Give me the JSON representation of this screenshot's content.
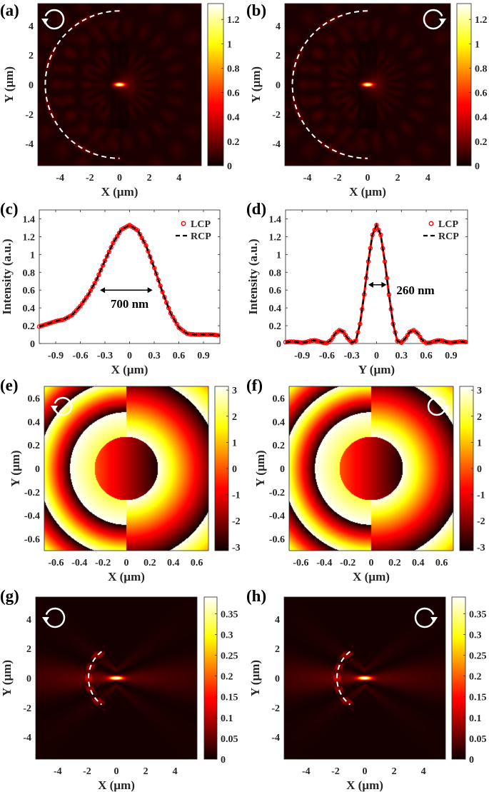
{
  "colors": {
    "lcp_marker": "#ff0000",
    "rcp_line": "#000000",
    "overlay": "#ffffff",
    "axes": "#262626"
  },
  "chart_data": [
    {
      "id": "a",
      "label": "(a)",
      "type": "heatmap",
      "quantity": "intensity",
      "colormap": "hot",
      "xlabel": "X (µm)",
      "ylabel": "Y (µm)",
      "xlim": [
        -5.5,
        5.5
      ],
      "ylim": [
        -5.5,
        5.5
      ],
      "xticks": [
        -4,
        -2,
        0,
        2,
        4
      ],
      "yticks": [
        -4,
        -2,
        0,
        2,
        4
      ],
      "clim": [
        0,
        1.33
      ],
      "colorbar_ticks": [
        0,
        0.2,
        0.4,
        0.6,
        0.8,
        1,
        1.2
      ],
      "peak": {
        "x": 0,
        "y": 0,
        "value": 1.33
      },
      "polarization_icon": "counterclockwise-circular-arrow-icon",
      "lens_outline": {
        "center": [
          0,
          0
        ],
        "radius": 5,
        "angles_deg": [
          90,
          270
        ],
        "style": "dashed"
      }
    },
    {
      "id": "b",
      "label": "(b)",
      "type": "heatmap",
      "quantity": "intensity",
      "colormap": "hot",
      "xlabel": "X (µm)",
      "ylabel": "Y (µm)",
      "xlim": [
        -5.5,
        5.5
      ],
      "ylim": [
        -5.5,
        5.5
      ],
      "xticks": [
        -4,
        -2,
        0,
        2,
        4
      ],
      "yticks": [
        -4,
        -2,
        0,
        2,
        4
      ],
      "clim": [
        0,
        1.33
      ],
      "colorbar_ticks": [
        0,
        0.2,
        0.4,
        0.6,
        0.8,
        1,
        1.2
      ],
      "peak": {
        "x": 0,
        "y": 0,
        "value": 1.33
      },
      "polarization_icon": "clockwise-circular-arrow-icon",
      "lens_outline": {
        "center": [
          0,
          0
        ],
        "radius": 5,
        "angles_deg": [
          90,
          270
        ],
        "style": "dashed"
      }
    },
    {
      "id": "c",
      "label": "(c)",
      "type": "line",
      "xlabel": "X (µm)",
      "ylabel": "Intensity (a.u.)",
      "xlim": [
        -1.1,
        1.1
      ],
      "ylim": [
        0,
        1.5
      ],
      "xticks": [
        -0.9,
        -0.6,
        -0.3,
        0,
        0.3,
        0.6,
        0.9
      ],
      "yticks": [
        0,
        0.2,
        0.4,
        0.6,
        0.8,
        1,
        1.2,
        1.4
      ],
      "legend_position": "top-right",
      "x": [
        -1.1,
        -1.0,
        -0.9,
        -0.8,
        -0.7,
        -0.6,
        -0.5,
        -0.4,
        -0.3,
        -0.2,
        -0.1,
        0,
        0.1,
        0.2,
        0.3,
        0.4,
        0.5,
        0.6,
        0.7,
        0.8,
        0.9,
        1.0,
        1.1
      ],
      "series": [
        {
          "name": "LCP",
          "style": "red-circles",
          "values": [
            0.19,
            0.22,
            0.25,
            0.27,
            0.32,
            0.42,
            0.55,
            0.72,
            0.93,
            1.13,
            1.28,
            1.33,
            1.27,
            1.1,
            0.85,
            0.58,
            0.34,
            0.18,
            0.11,
            0.1,
            0.1,
            0.1,
            0.09
          ]
        },
        {
          "name": "RCP",
          "style": "black-dashed",
          "values": [
            0.19,
            0.22,
            0.25,
            0.27,
            0.32,
            0.42,
            0.55,
            0.72,
            0.93,
            1.13,
            1.28,
            1.33,
            1.27,
            1.1,
            0.85,
            0.58,
            0.34,
            0.18,
            0.11,
            0.1,
            0.1,
            0.1,
            0.09
          ]
        }
      ],
      "annotation": {
        "text": "700 nm",
        "arrow_x": [
          -0.36,
          0.28
        ],
        "arrow_y": 0.6,
        "text_x": 0,
        "text_y": 0.45
      }
    },
    {
      "id": "d",
      "label": "(d)",
      "type": "line",
      "xlabel": "Y (µm)",
      "ylabel": "Intensity (a.u.)",
      "xlim": [
        -1.1,
        1.1
      ],
      "ylim": [
        0,
        1.5
      ],
      "xticks": [
        -0.9,
        -0.6,
        -0.3,
        0,
        0.3,
        0.6,
        0.9
      ],
      "yticks": [
        0,
        0.2,
        0.4,
        0.6,
        0.8,
        1,
        1.2,
        1.4
      ],
      "legend_position": "top-right",
      "x": [
        -1.1,
        -1.05,
        -1.0,
        -0.95,
        -0.9,
        -0.85,
        -0.8,
        -0.75,
        -0.7,
        -0.65,
        -0.6,
        -0.55,
        -0.5,
        -0.45,
        -0.4,
        -0.35,
        -0.3,
        -0.25,
        -0.2,
        -0.15,
        -0.1,
        -0.05,
        0,
        0.05,
        0.1,
        0.15,
        0.2,
        0.25,
        0.3,
        0.35,
        0.4,
        0.45,
        0.5,
        0.55,
        0.6,
        0.65,
        0.7,
        0.75,
        0.8,
        0.85,
        0.9,
        0.95,
        1.0,
        1.05,
        1.1
      ],
      "series": [
        {
          "name": "LCP",
          "style": "red-circles",
          "values": [
            0.015,
            0.02,
            0.02,
            0.015,
            0.01,
            0.015,
            0.03,
            0.035,
            0.025,
            0.01,
            0.005,
            0.04,
            0.11,
            0.15,
            0.13,
            0.06,
            0.01,
            0.03,
            0.22,
            0.55,
            0.92,
            1.22,
            1.33,
            1.22,
            0.92,
            0.55,
            0.22,
            0.03,
            0.01,
            0.06,
            0.13,
            0.15,
            0.11,
            0.04,
            0.005,
            0.01,
            0.025,
            0.035,
            0.03,
            0.015,
            0.01,
            0.015,
            0.02,
            0.02,
            0.015
          ]
        },
        {
          "name": "RCP",
          "style": "black-dashed",
          "values": [
            0.015,
            0.02,
            0.02,
            0.015,
            0.01,
            0.015,
            0.03,
            0.035,
            0.025,
            0.01,
            0.005,
            0.04,
            0.11,
            0.15,
            0.13,
            0.06,
            0.01,
            0.03,
            0.22,
            0.55,
            0.92,
            1.22,
            1.33,
            1.22,
            0.92,
            0.55,
            0.22,
            0.03,
            0.01,
            0.06,
            0.13,
            0.15,
            0.11,
            0.04,
            0.005,
            0.01,
            0.025,
            0.035,
            0.03,
            0.015,
            0.01,
            0.015,
            0.02,
            0.02,
            0.015
          ]
        }
      ],
      "annotation": {
        "text": "260 nm",
        "arrow_x": [
          -0.1,
          0.12
        ],
        "arrow_y": 0.66,
        "text_x": 0.24,
        "text_y": 0.6
      }
    },
    {
      "id": "e",
      "label": "(e)",
      "type": "heatmap",
      "quantity": "phase",
      "colormap": "hot",
      "xlabel": "X (µm)",
      "ylabel": "Y (µm)",
      "xlim": [
        -0.7,
        0.7
      ],
      "ylim": [
        -0.7,
        0.7
      ],
      "xticks": [
        -0.6,
        -0.4,
        -0.2,
        0,
        0.2,
        0.4,
        0.6
      ],
      "yticks": [
        -0.6,
        -0.4,
        -0.2,
        0,
        0.2,
        0.4,
        0.6
      ],
      "clim": [
        -3.1416,
        3.1416
      ],
      "colorbar_ticks": [
        -3,
        -2,
        -1,
        0,
        1,
        2,
        3
      ],
      "polarization_icon": "counterclockwise-circular-arrow-icon"
    },
    {
      "id": "f",
      "label": "(f)",
      "type": "heatmap",
      "quantity": "phase",
      "colormap": "hot",
      "xlabel": "X (µm)",
      "ylabel": "Y (µm)",
      "xlim": [
        -0.7,
        0.7
      ],
      "ylim": [
        -0.7,
        0.7
      ],
      "xticks": [
        -0.6,
        -0.4,
        -0.2,
        0,
        0.2,
        0.4,
        0.6
      ],
      "yticks": [
        -0.6,
        -0.4,
        -0.2,
        0,
        0.2,
        0.4,
        0.6
      ],
      "clim": [
        -3.1416,
        3.1416
      ],
      "colorbar_ticks": [
        -3,
        -2,
        -1,
        0,
        1,
        2,
        3
      ],
      "polarization_icon": "clockwise-circular-arrow-icon"
    },
    {
      "id": "g",
      "label": "(g)",
      "type": "heatmap",
      "quantity": "intensity",
      "colormap": "hot",
      "xlabel": "X (µm)",
      "ylabel": "Y (µm)",
      "xlim": [
        -5.5,
        5.5
      ],
      "ylim": [
        -5.5,
        5.5
      ],
      "xticks": [
        -4,
        -2,
        0,
        2,
        4
      ],
      "yticks": [
        -4,
        -2,
        0,
        2,
        4
      ],
      "clim": [
        0,
        0.39
      ],
      "colorbar_ticks": [
        0,
        0.05,
        0.1,
        0.15,
        0.2,
        0.25,
        0.3,
        0.35
      ],
      "peak": {
        "x": 0,
        "y": 0,
        "value": 0.39
      },
      "polarization_icon": "counterclockwise-circular-arrow-icon",
      "lens_outline": {
        "center": [
          0.35,
          0
        ],
        "radius": 2.25,
        "angles_deg": [
          127,
          233
        ],
        "style": "dashed"
      }
    },
    {
      "id": "h",
      "label": "(h)",
      "type": "heatmap",
      "quantity": "intensity",
      "colormap": "hot",
      "xlabel": "X (µm)",
      "ylabel": "Y (µm)",
      "xlim": [
        -5.5,
        5.5
      ],
      "ylim": [
        -5.5,
        5.5
      ],
      "xticks": [
        -4,
        -2,
        0,
        2,
        4
      ],
      "yticks": [
        -4,
        -2,
        0,
        2,
        4
      ],
      "clim": [
        0,
        0.39
      ],
      "colorbar_ticks": [
        0,
        0.05,
        0.1,
        0.15,
        0.2,
        0.25,
        0.3,
        0.35
      ],
      "peak": {
        "x": 0,
        "y": 0,
        "value": 0.39
      },
      "polarization_icon": "clockwise-circular-arrow-icon",
      "lens_outline": {
        "center": [
          0.35,
          0
        ],
        "radius": 2.25,
        "angles_deg": [
          127,
          233
        ],
        "style": "dashed"
      }
    }
  ]
}
